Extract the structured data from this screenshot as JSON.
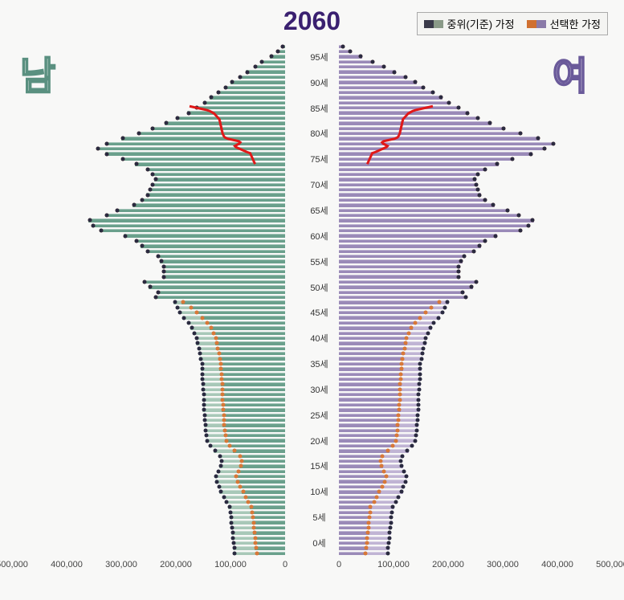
{
  "title": "2060",
  "legend": {
    "baseline_label": "중위(기준) 가정",
    "selected_label": "선택한 가정",
    "baseline_colors": [
      "#3a3a4a",
      "#8a9a88"
    ],
    "selected_colors": [
      "#d07030",
      "#8a7aa8"
    ]
  },
  "gender_labels": {
    "male": "남",
    "female": "여"
  },
  "colors": {
    "male_fill": "#6aa08c",
    "male_fill_light": "#a8c8b8",
    "female_fill": "#9a8ab8",
    "female_fill_light": "#c0b4d4",
    "dot_orange": "#d87838",
    "dot_dark": "#2a2a40",
    "red_line": "#e01818",
    "background": "#f8f8f7"
  },
  "chart": {
    "type": "population-pyramid",
    "x_max": 500000,
    "x_ticks": [
      0,
      100000,
      200000,
      300000,
      400000,
      500000
    ],
    "x_tick_labels": [
      "0",
      "100,000",
      "200,000",
      "300,000",
      "400,000",
      "500,000"
    ],
    "age_ticks": [
      0,
      5,
      10,
      15,
      20,
      25,
      30,
      35,
      40,
      45,
      50,
      55,
      60,
      65,
      70,
      75,
      80,
      85,
      90,
      95
    ],
    "age_tick_suffix": "세",
    "n_ages": 100,
    "male_selected": [
      55000,
      56000,
      57000,
      58000,
      59000,
      60000,
      61000,
      62000,
      63000,
      64000,
      70000,
      75000,
      80000,
      85000,
      90000,
      92000,
      88000,
      84000,
      82000,
      85000,
      95000,
      105000,
      110000,
      112000,
      113000,
      114000,
      115000,
      115000,
      116000,
      116000,
      117000,
      117000,
      118000,
      118000,
      119000,
      119000,
      120000,
      120000,
      122000,
      124000,
      126000,
      128000,
      130000,
      134000,
      138000,
      145000,
      155000,
      165000,
      175000,
      190000,
      240000,
      235000,
      250000,
      260000,
      225000,
      225000,
      225000,
      230000,
      235000,
      255000,
      265000,
      275000,
      295000,
      340000,
      355000,
      360000,
      330000,
      310000,
      280000,
      265000,
      255000,
      250000,
      245000,
      240000,
      245000,
      255000,
      275000,
      300000,
      330000,
      345000,
      330000,
      300000,
      270000,
      245000,
      220000,
      200000,
      180000,
      165000,
      150000,
      138000,
      125000,
      112000,
      100000,
      86000,
      72000,
      58000,
      45000,
      28000,
      16000,
      7000
    ],
    "female_selected": [
      52000,
      53000,
      54000,
      55000,
      56000,
      57000,
      58000,
      59000,
      60000,
      61000,
      67000,
      72000,
      77000,
      82000,
      87000,
      89000,
      85000,
      81000,
      79000,
      82000,
      92000,
      102000,
      107000,
      109000,
      110000,
      111000,
      112000,
      112000,
      113000,
      113000,
      114000,
      114000,
      115000,
      115000,
      116000,
      116000,
      117000,
      117000,
      119000,
      121000,
      123000,
      125000,
      127000,
      131000,
      135000,
      142000,
      152000,
      162000,
      172000,
      187000,
      235000,
      230000,
      245000,
      255000,
      222000,
      222000,
      222000,
      226000,
      232000,
      250000,
      260000,
      270000,
      290000,
      335000,
      350000,
      358000,
      332000,
      312000,
      285000,
      270000,
      260000,
      258000,
      255000,
      252000,
      258000,
      270000,
      292000,
      320000,
      355000,
      380000,
      395000,
      368000,
      335000,
      305000,
      280000,
      258000,
      238000,
      222000,
      205000,
      190000,
      175000,
      158000,
      142000,
      125000,
      105000,
      85000,
      65000,
      42000,
      24000,
      11000
    ],
    "male_baseline": [
      95000,
      96000,
      97000,
      98000,
      99000,
      100000,
      101000,
      102000,
      103000,
      104000,
      110000,
      115000,
      120000,
      124000,
      128000,
      129000,
      125000,
      121000,
      119000,
      122000,
      131000,
      140000,
      145000,
      147000,
      148000,
      149000,
      150000,
      150000,
      151000,
      151000,
      152000,
      152000,
      153000,
      153000,
      154000,
      154000,
      155000,
      155000,
      157000,
      159000,
      161000,
      163000,
      165000,
      169000,
      173000,
      180000,
      188000,
      195000,
      200000,
      205000,
      240000,
      235000,
      250000,
      260000,
      225000,
      225000,
      225000,
      230000,
      235000,
      255000,
      265000,
      275000,
      295000,
      340000,
      355000,
      360000,
      330000,
      310000,
      280000,
      265000,
      255000,
      250000,
      245000,
      240000,
      245000,
      255000,
      275000,
      300000,
      330000,
      345000,
      330000,
      300000,
      270000,
      245000,
      220000,
      200000,
      180000,
      165000,
      150000,
      138000,
      125000,
      112000,
      100000,
      86000,
      72000,
      58000,
      45000,
      28000,
      16000,
      7000
    ],
    "female_baseline": [
      92000,
      93000,
      94000,
      95000,
      96000,
      97000,
      98000,
      99000,
      100000,
      101000,
      107000,
      112000,
      117000,
      121000,
      125000,
      126000,
      122000,
      118000,
      116000,
      119000,
      128000,
      137000,
      142000,
      144000,
      145000,
      146000,
      147000,
      147000,
      148000,
      148000,
      149000,
      149000,
      150000,
      150000,
      151000,
      151000,
      152000,
      152000,
      154000,
      156000,
      158000,
      160000,
      162000,
      166000,
      170000,
      177000,
      185000,
      192000,
      197000,
      202000,
      235000,
      230000,
      245000,
      255000,
      222000,
      222000,
      222000,
      226000,
      232000,
      250000,
      260000,
      270000,
      290000,
      335000,
      350000,
      358000,
      332000,
      312000,
      285000,
      270000,
      260000,
      258000,
      255000,
      252000,
      258000,
      270000,
      292000,
      320000,
      355000,
      380000,
      395000,
      368000,
      335000,
      305000,
      280000,
      258000,
      238000,
      222000,
      205000,
      190000,
      175000,
      158000,
      142000,
      125000,
      105000,
      85000,
      65000,
      42000,
      24000,
      11000
    ]
  }
}
